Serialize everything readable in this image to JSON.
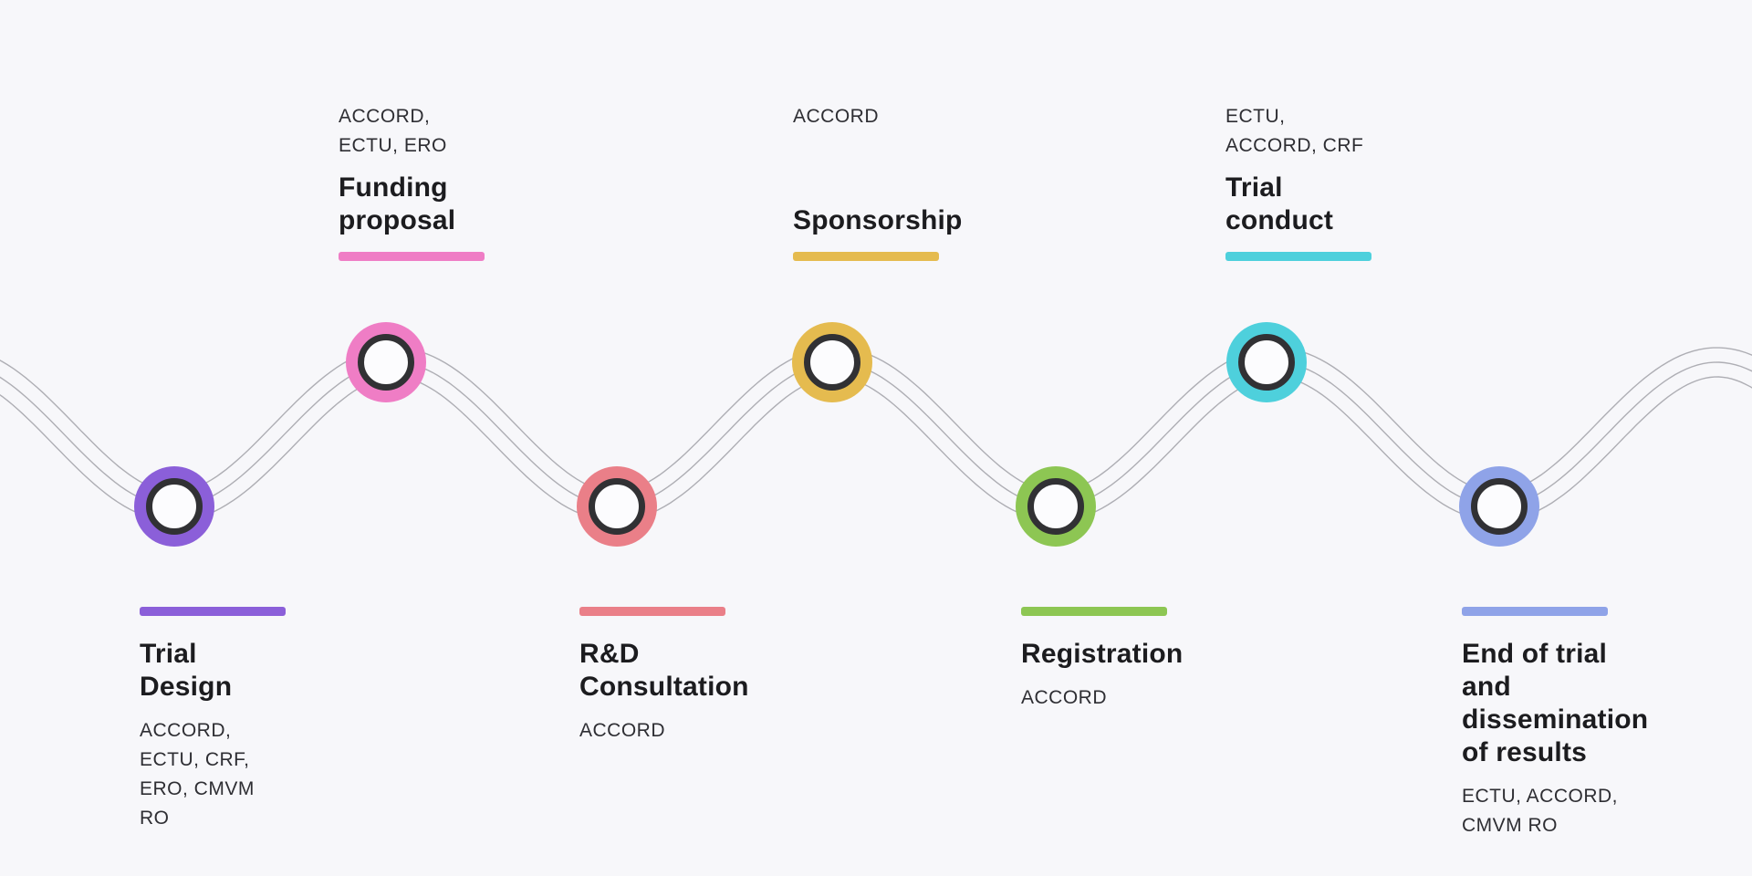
{
  "page": {
    "background_color": "#f7f7fa",
    "description": "Clinical trial journey timeline"
  },
  "colors": {
    "wave_line": "#aeaeb4",
    "node_ring_dark": "#313134",
    "node_core": "#fcfcfe",
    "title_text": "#1c1c1f",
    "orgs_text": "#2e2e33"
  },
  "stages": [
    {
      "id": "trial-design",
      "title": "Trial Design",
      "orgs": "ACCORD, ECTU, CRF, ERO, CMVM RO",
      "color": "#8b5fd9",
      "side": "bottom"
    },
    {
      "id": "funding-proposal",
      "title": "Funding proposal",
      "orgs": "ACCORD, ECTU, ERO",
      "color": "#ef7dc5",
      "side": "top"
    },
    {
      "id": "rd-consultation",
      "title": "R&D Consultation",
      "orgs": "ACCORD",
      "color": "#ea7f88",
      "side": "bottom"
    },
    {
      "id": "sponsorship",
      "title": "Sponsorship",
      "orgs": "ACCORD",
      "color": "#e5bb4f",
      "side": "top"
    },
    {
      "id": "registration",
      "title": "Registration",
      "orgs": "ACCORD",
      "color": "#8dc653",
      "side": "bottom"
    },
    {
      "id": "trial-conduct",
      "title": "Trial conduct",
      "orgs": "ECTU, ACCORD, CRF",
      "color": "#4ed0dc",
      "side": "top"
    },
    {
      "id": "end-of-trial",
      "title": "End of trial and dissemination of results",
      "orgs": "ECTU, ACCORD, CMVM RO",
      "color": "#8fa3e8",
      "side": "bottom"
    }
  ]
}
